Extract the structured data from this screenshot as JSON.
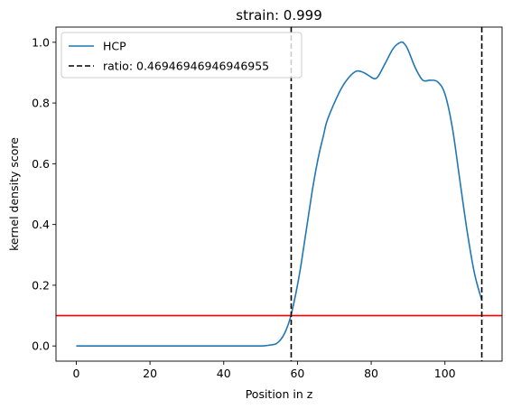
{
  "chart_data": {
    "type": "line",
    "title": "strain: 0.999",
    "xlabel": "Position in z",
    "ylabel": "kernel density score",
    "xlim": [
      -5.5,
      115.5
    ],
    "ylim": [
      -0.05,
      1.05
    ],
    "xticks": [
      0,
      20,
      40,
      60,
      80,
      100
    ],
    "yticks": [
      0.0,
      0.2,
      0.4,
      0.6,
      0.8,
      1.0
    ],
    "xtick_labels": [
      "0",
      "20",
      "40",
      "60",
      "80",
      "100"
    ],
    "ytick_labels": [
      "0.0",
      "0.2",
      "0.4",
      "0.6",
      "0.8",
      "1.0"
    ],
    "grid": false,
    "legend_position": "upper-left",
    "series": [
      {
        "name": "HCP",
        "color": "#1f77b4",
        "x": [
          0,
          10,
          20,
          30,
          40,
          45,
          50,
          52,
          54,
          55,
          56,
          57,
          58,
          59,
          60,
          61,
          62,
          63,
          64,
          65,
          66,
          67,
          68,
          70,
          72,
          74,
          76,
          78,
          80,
          81,
          82,
          84,
          86,
          88,
          89,
          90,
          92,
          94,
          96,
          98,
          100,
          102,
          104,
          106,
          108,
          110
        ],
        "y": [
          0.0,
          0.0,
          0.0,
          0.0,
          0.0,
          0.0,
          0.0,
          0.002,
          0.006,
          0.015,
          0.03,
          0.055,
          0.09,
          0.14,
          0.2,
          0.27,
          0.35,
          0.43,
          0.51,
          0.58,
          0.64,
          0.69,
          0.74,
          0.8,
          0.85,
          0.885,
          0.905,
          0.9,
          0.885,
          0.88,
          0.89,
          0.935,
          0.98,
          1.0,
          0.995,
          0.975,
          0.915,
          0.875,
          0.875,
          0.87,
          0.83,
          0.72,
          0.55,
          0.38,
          0.24,
          0.15
        ]
      }
    ],
    "vlines": [
      {
        "x": 58.3,
        "color": "#000000",
        "style": "dashed",
        "label": "ratio: 0.46946946946946955"
      },
      {
        "x": 110,
        "color": "#000000",
        "style": "dashed"
      }
    ],
    "hlines": [
      {
        "y": 0.1,
        "color": "#ff0000",
        "style": "solid"
      }
    ],
    "legend": [
      {
        "label": "HCP",
        "style": "solid",
        "color": "#1f77b4"
      },
      {
        "label": "ratio: 0.46946946946946955",
        "style": "dashed",
        "color": "#000000"
      }
    ]
  }
}
